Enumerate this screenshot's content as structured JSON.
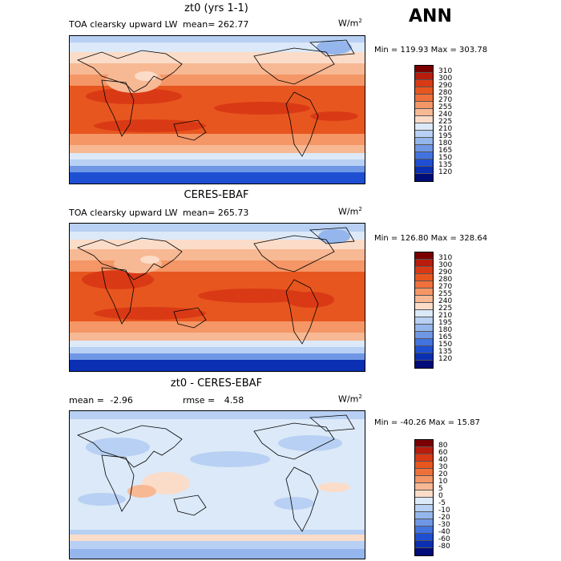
{
  "season": "ANN",
  "panels": [
    {
      "title": "zt0 (yrs 1-1)",
      "variable": "TOA clearsky upward LW",
      "mean_label": "mean=",
      "mean_value": "262.77",
      "units": "W/m",
      "units_sup": "2",
      "minmax": "Min = 119.93 Max = 303.78",
      "levels": [
        "310",
        "300",
        "290",
        "280",
        "270",
        "255",
        "240",
        "225",
        "210",
        "195",
        "180",
        "165",
        "150",
        "135",
        "120"
      ]
    },
    {
      "title": "CERES-EBAF",
      "variable": "TOA clearsky upward LW",
      "mean_label": "mean=",
      "mean_value": "265.73",
      "units": "W/m",
      "units_sup": "2",
      "minmax": "Min = 126.80 Max = 328.64",
      "levels": [
        "310",
        "300",
        "290",
        "280",
        "270",
        "255",
        "240",
        "225",
        "210",
        "195",
        "180",
        "165",
        "150",
        "135",
        "120"
      ]
    },
    {
      "title": "zt0 - CERES-EBAF",
      "mean_label": "mean =",
      "mean_value": "-2.96",
      "rmse_label": "rmse =",
      "rmse_value": "4.58",
      "units": "W/m",
      "units_sup": "2",
      "minmax": "Min = -40.26 Max =   15.87",
      "levels": [
        "80",
        "60",
        "40",
        "30",
        "20",
        "10",
        "5",
        "0",
        "-5",
        "-10",
        "-20",
        "-30",
        "-40",
        "-60",
        "-80"
      ]
    }
  ],
  "colors": [
    "#7a0000",
    "#b81c0c",
    "#d93a15",
    "#e8561f",
    "#f0703c",
    "#f49666",
    "#f7b894",
    "#fbdcc8",
    "#dce9f8",
    "#b8d0f3",
    "#95b6ec",
    "#6f97e5",
    "#4373df",
    "#1e4fd3",
    "#0a2fb3",
    "#000c78"
  ]
}
